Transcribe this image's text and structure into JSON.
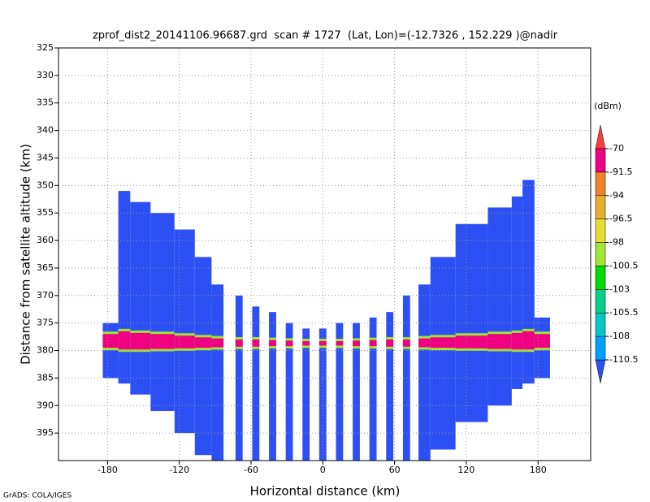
{
  "chart_data": {
    "type": "profile",
    "title": "zprof_dist2_20141106.96687.grd  scan # 1727  (Lat, Lon)=(-12.7326 , 152.229 )@nadir",
    "x_label": "Horizontal distance (km)",
    "y_label": "Distance from satellite altitude (km)",
    "footer": "GrADS: COLA/IGES",
    "xlim": [
      -221,
      224
    ],
    "ylim": [
      325,
      400
    ],
    "y_inverted": true,
    "xticks": [
      -180,
      -120,
      -60,
      0,
      60,
      120,
      180
    ],
    "yticks": [
      325,
      330,
      335,
      340,
      345,
      350,
      355,
      360,
      365,
      370,
      375,
      380,
      385,
      390,
      395
    ],
    "grid": true,
    "columns": {
      "x_left": [
        -184,
        -171,
        -161,
        -144,
        -124,
        -107,
        -93,
        -73,
        -59,
        -45,
        -31,
        -17,
        -3,
        11,
        25,
        39,
        53,
        67,
        80,
        90,
        111,
        138,
        158,
        167,
        177
      ],
      "x_right": [
        -171,
        -161,
        -144,
        -124,
        -107,
        -93,
        -83,
        -67,
        -53,
        -39,
        -25,
        -11,
        3,
        17,
        31,
        45,
        59,
        73,
        90,
        111,
        138,
        158,
        167,
        177,
        190
      ],
      "top": [
        375,
        351,
        353,
        355,
        358,
        363,
        368,
        370,
        372,
        373,
        375,
        376,
        376,
        375,
        375,
        374,
        373,
        370,
        368,
        363,
        357,
        354,
        352,
        349,
        374
      ],
      "bottom": [
        385,
        386,
        388,
        391,
        395,
        399,
        400,
        400,
        400,
        400,
        400,
        400,
        400,
        400,
        400,
        400,
        400,
        400,
        400,
        398,
        393,
        390,
        387,
        386,
        385
      ],
      "band_top": [
        377,
        376.5,
        376.8,
        377,
        377.3,
        377.6,
        377.8,
        378,
        378,
        378.1,
        378.2,
        378.3,
        378.3,
        378.3,
        378.2,
        378.1,
        378,
        378,
        377.8,
        377.6,
        377.3,
        377,
        376.8,
        376.5,
        377
      ],
      "band_bottom": [
        379.5,
        379.8,
        379.8,
        379.7,
        379.6,
        379.5,
        379.4,
        379.3,
        379.3,
        379.2,
        379.2,
        379.1,
        379.1,
        379.1,
        379.2,
        379.2,
        379.3,
        379.3,
        379.4,
        379.5,
        379.6,
        379.7,
        379.8,
        379.8,
        379.5
      ]
    },
    "echo_value": -112,
    "band_value": -85,
    "band_edge_value": -99,
    "colorbar": {
      "title": "(dBm)",
      "levels": [
        -110.5,
        -108,
        -105.5,
        -103,
        -100.5,
        -98,
        -96.5,
        -94,
        -91.5,
        -70
      ],
      "colors": [
        "#2d50f5",
        "#00a0ff",
        "#00c8c8",
        "#00d28c",
        "#00dc00",
        "#a0e632",
        "#e6dc32",
        "#e6af2d",
        "#f08228",
        "#f00082",
        "#fa3c3c"
      ]
    }
  }
}
